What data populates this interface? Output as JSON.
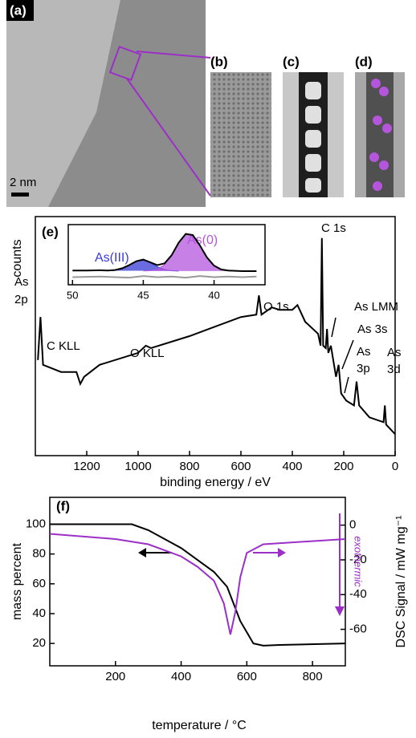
{
  "images": {
    "labels": [
      "(a)",
      "(b)",
      "(c)",
      "(d)"
    ],
    "scale_bar": "2 nm"
  },
  "chart_data": [
    {
      "type": "line",
      "label": "(e)",
      "xlabel": "binding energy / eV",
      "ylabel": "counts",
      "xlim": [
        1400,
        0
      ],
      "xticks": [
        1200,
        1000,
        800,
        600,
        400,
        200,
        0
      ],
      "ylim": [
        0,
        100
      ],
      "series": [
        {
          "color": "#000000",
          "x": [
            1390,
            1380,
            1370,
            1300,
            1240,
            1225,
            1210,
            1150,
            1000,
            970,
            950,
            800,
            600,
            540,
            530,
            520,
            480,
            450,
            400,
            380,
            350,
            300,
            290,
            285,
            280,
            270,
            265,
            260,
            250,
            230,
            220,
            210,
            190,
            160,
            150,
            140,
            100,
            45,
            40,
            35,
            0
          ],
          "values": [
            40,
            58,
            38,
            35,
            35,
            30,
            33,
            38,
            43,
            46,
            45,
            50,
            58,
            59,
            67,
            59,
            62,
            61,
            61,
            63,
            56,
            51,
            46,
            91,
            46,
            45,
            53,
            43,
            46,
            33,
            38,
            26,
            23,
            21,
            31,
            21,
            16,
            14,
            21,
            13,
            9
          ]
        }
      ],
      "annotations": [
        "As",
        "2p",
        "C KLL",
        "O KLL",
        "O 1s",
        "C 1s",
        "As LMM",
        "As 3s",
        "As",
        "3p",
        "As",
        "3d"
      ]
    },
    {
      "type": "line",
      "xlim": [
        50.3,
        36.4
      ],
      "xticks": [
        50,
        45,
        40
      ],
      "ylim": [
        -10,
        100
      ],
      "series": [
        {
          "name": "As(III)",
          "color": "#3a3ad6",
          "fill": true,
          "x": [
            47.5,
            47,
            46.5,
            46,
            45.5,
            45,
            44.5,
            44,
            43.5,
            43,
            42.5
          ],
          "values": [
            15.6,
            16.2,
            19.3,
            25.6,
            32.6,
            35,
            30,
            22.8,
            17.7,
            15.6,
            15.1
          ]
        },
        {
          "name": "As(0)",
          "color": "#b455dc",
          "fill": true,
          "x": [
            45,
            44.5,
            44,
            43.5,
            43,
            42.5,
            42,
            41.5,
            41,
            40.5,
            40,
            39.5,
            39,
            38.5
          ],
          "values": [
            15.2,
            15.8,
            18.5,
            26.8,
            43.7,
            66.8,
            83.3,
            81.2,
            62,
            39.6,
            24.5,
            17.7,
            15.5,
            15
          ]
        },
        {
          "color": "#000000",
          "x": [
            50,
            49,
            48,
            47.5,
            47,
            46.5,
            46,
            45.5,
            45,
            44.5,
            44,
            43.5,
            43,
            42.5,
            42,
            41.5,
            41,
            40.5,
            40,
            39.5,
            39,
            38,
            37
          ],
          "values": [
            16,
            16,
            16.5,
            16,
            17,
            20,
            26,
            33,
            36,
            31,
            26,
            29,
            44,
            67,
            83,
            81,
            62,
            40,
            25,
            18,
            16,
            15,
            15
          ]
        },
        {
          "color": "#999999",
          "x": [
            50,
            48,
            46,
            45,
            44,
            43,
            42,
            41,
            40,
            39,
            38,
            37
          ],
          "values": [
            4,
            5,
            3,
            6,
            4,
            5,
            3,
            6,
            4,
            5,
            4,
            5
          ]
        }
      ]
    },
    {
      "type": "line",
      "label": "(f)",
      "xlabel": "temperature / °C",
      "ylabel": "mass percent",
      "y2label": "DSC Signal / mW mg⁻¹",
      "xlim": [
        0,
        900
      ],
      "xticks": [
        200,
        400,
        600,
        800
      ],
      "ylim": [
        5,
        118
      ],
      "yticks": [
        20,
        40,
        60,
        80,
        100
      ],
      "y2lim": [
        -81,
        16
      ],
      "y2ticks": [
        0,
        -20,
        -40,
        -60
      ],
      "series": [
        {
          "color": "#000000",
          "x": [
            0,
            250,
            300,
            400,
            500,
            540,
            580,
            620,
            650,
            700,
            900
          ],
          "values": [
            100,
            100,
            96,
            84,
            68,
            58,
            35,
            20,
            18.5,
            19,
            20
          ]
        },
        {
          "color": "#9b2fc7",
          "axis": "y2",
          "x": [
            0,
            200,
            300,
            400,
            450,
            500,
            530,
            550,
            565,
            580,
            600,
            650,
            900
          ],
          "values": [
            -5,
            -8,
            -11,
            -18,
            -24,
            -32,
            -45,
            -63,
            -50,
            -30,
            -16,
            -11,
            -8
          ]
        }
      ],
      "annotations": [
        "exothermic"
      ]
    }
  ]
}
